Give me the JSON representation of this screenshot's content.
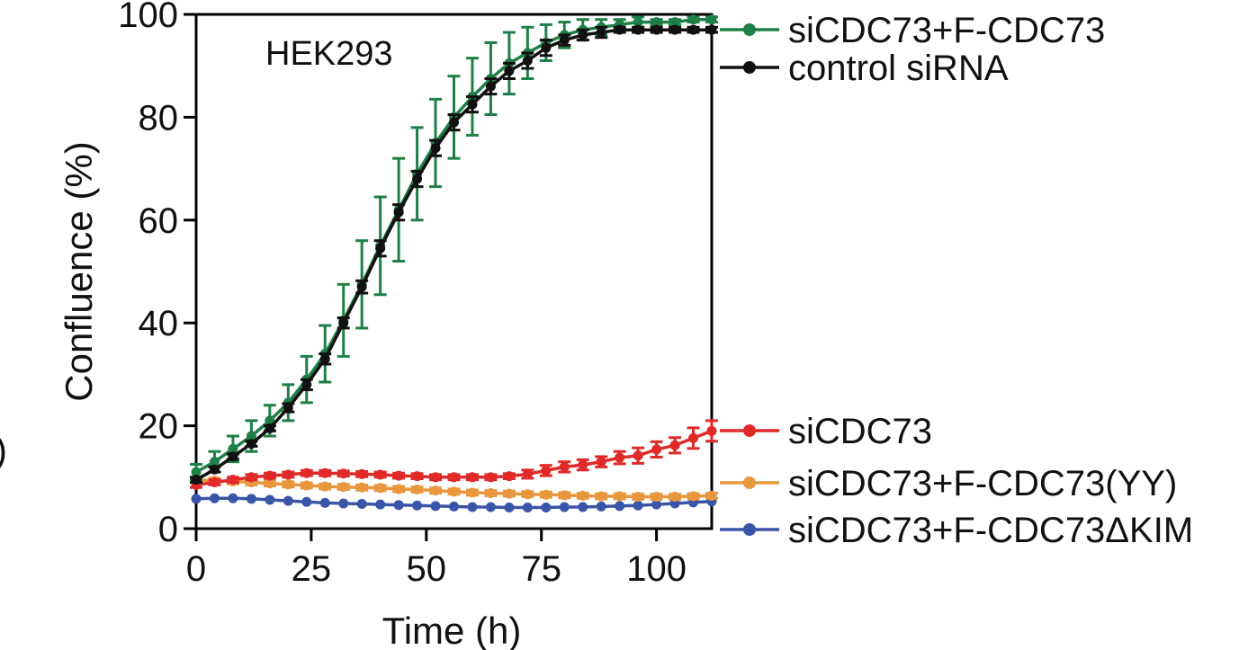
{
  "chart_data": {
    "type": "line",
    "title": "",
    "annotation": "HEK293",
    "xlabel": "Time (h)",
    "ylabel": "Confluence (%)",
    "xlim": [
      0,
      112
    ],
    "ylim": [
      0,
      100
    ],
    "xticks": [
      0,
      25,
      50,
      75,
      100
    ],
    "yticks": [
      0,
      20,
      40,
      60,
      80,
      100
    ],
    "cropped_left_text": ")",
    "x": [
      0,
      4,
      8,
      12,
      16,
      20,
      24,
      28,
      32,
      36,
      40,
      44,
      48,
      52,
      56,
      60,
      64,
      68,
      72,
      76,
      80,
      84,
      88,
      92,
      96,
      100,
      104,
      108,
      112
    ],
    "series": [
      {
        "name": "siCDC73+F-CDC73",
        "color": "#1e8046",
        "values": [
          11,
          13,
          15.5,
          18,
          21,
          24.5,
          29,
          34,
          40.5,
          47.5,
          55,
          62,
          69,
          75,
          80,
          84,
          87.5,
          90.5,
          92.5,
          94.5,
          96,
          97,
          97.5,
          98,
          98.5,
          98.5,
          98.5,
          99,
          99
        ],
        "errors": [
          1.5,
          2,
          2.5,
          3,
          3,
          3.5,
          4.5,
          5.5,
          7,
          8.5,
          9.5,
          10,
          9,
          8.5,
          8,
          7.5,
          7,
          6,
          5,
          3.5,
          2.5,
          2,
          1.5,
          1,
          1,
          0.5,
          0.5,
          0.5,
          0.5
        ]
      },
      {
        "name": "control siRNA",
        "color": "#111111",
        "values": [
          9.5,
          11.5,
          14,
          16.5,
          19.5,
          23.5,
          28,
          33,
          40,
          47,
          54.5,
          61.5,
          68,
          74,
          79,
          82.5,
          86,
          89,
          91,
          93.5,
          95,
          96,
          96.5,
          97,
          97,
          97,
          97,
          97,
          97
        ],
        "errors": [
          0.5,
          0.5,
          0.5,
          0.5,
          0.5,
          0.8,
          1,
          1,
          1,
          1.2,
          1.5,
          1.5,
          1.5,
          1.5,
          1.5,
          1.5,
          1.5,
          1.5,
          1.5,
          1.5,
          1,
          1,
          1,
          0.5,
          0.5,
          0.5,
          0.5,
          0.5,
          0.5
        ]
      },
      {
        "name": "siCDC73",
        "color": "#e02a2a",
        "values": [
          8.5,
          9,
          9.5,
          10,
          10.3,
          10.5,
          10.8,
          10.8,
          10.7,
          10.6,
          10.5,
          10.3,
          10.2,
          10,
          10,
          10,
          10,
          10.2,
          10.6,
          11.3,
          12,
          12.4,
          13,
          13.8,
          14.2,
          15.4,
          16.2,
          17.6,
          19
        ],
        "errors": [
          0.5,
          0.5,
          0.5,
          0.5,
          0.5,
          0.5,
          0.5,
          0.5,
          0.5,
          0.5,
          0.5,
          0.5,
          0.5,
          0.5,
          0.5,
          0.5,
          0.5,
          0.5,
          0.8,
          1,
          1,
          1,
          1,
          1.2,
          1.5,
          1.5,
          1.5,
          2,
          2
        ]
      },
      {
        "name": "siCDC73+F-CDC73(YY)",
        "color": "#e8973f",
        "values": [
          9.5,
          9.3,
          9.2,
          9,
          8.8,
          8.6,
          8.4,
          8.2,
          8.1,
          8,
          7.9,
          7.7,
          7.6,
          7.4,
          7.2,
          7,
          6.9,
          6.8,
          6.7,
          6.6,
          6.5,
          6.4,
          6.3,
          6.3,
          6.2,
          6.2,
          6.2,
          6.3,
          6.4
        ],
        "errors": [
          0.5,
          0.5,
          0.5,
          0.5,
          0.5,
          0.5,
          0.5,
          0.5,
          0.5,
          0.5,
          0.5,
          0.5,
          0.5,
          0.5,
          0.5,
          0.5,
          0.5,
          0.5,
          0.5,
          0.5,
          0.5,
          0.5,
          0.5,
          0.5,
          0.5,
          0.5,
          0.5,
          0.5,
          0.5
        ]
      },
      {
        "name": "siCDC73+F-CDC73ΔKIM",
        "color": "#3a55a8",
        "values": [
          5.8,
          5.9,
          5.9,
          5.8,
          5.6,
          5.4,
          5.2,
          5,
          4.9,
          4.8,
          4.7,
          4.6,
          4.5,
          4.4,
          4.3,
          4.2,
          4.2,
          4.1,
          4.1,
          4.1,
          4.2,
          4.2,
          4.3,
          4.4,
          4.5,
          4.7,
          4.9,
          5.1,
          5.3
        ],
        "errors": [
          0.3,
          0.3,
          0.3,
          0.3,
          0.3,
          0.3,
          0.3,
          0.3,
          0.3,
          0.3,
          0.3,
          0.3,
          0.3,
          0.3,
          0.3,
          0.3,
          0.3,
          0.3,
          0.3,
          0.3,
          0.3,
          0.3,
          0.3,
          0.3,
          0.3,
          0.3,
          0.3,
          0.3,
          0.3
        ]
      }
    ],
    "legend_position": "right"
  }
}
